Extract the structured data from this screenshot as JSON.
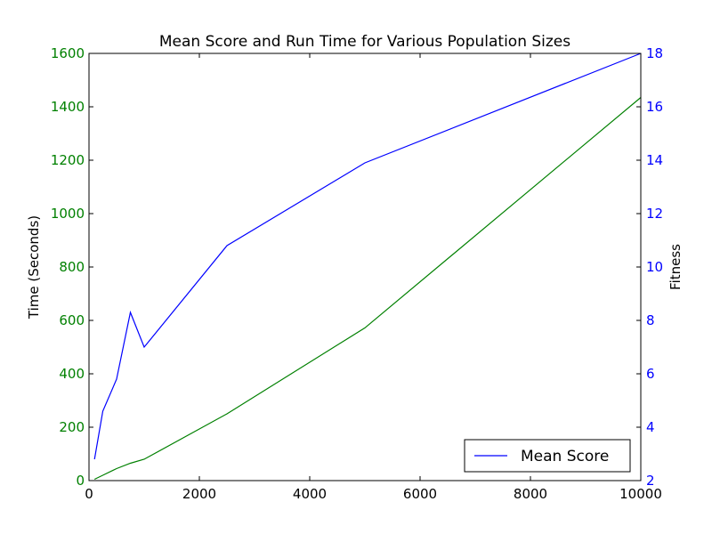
{
  "chart_data": {
    "type": "line",
    "title": "Mean Score and Run Time for Various Population Sizes",
    "xlabel": "",
    "ylabel": "Time (Seconds)",
    "y2label": "Fitness",
    "xlim": [
      0,
      10000
    ],
    "ylim": [
      0,
      1600
    ],
    "y2lim": [
      2,
      18
    ],
    "x_ticks": [
      "0",
      "2000",
      "4000",
      "6000",
      "8000",
      "10000"
    ],
    "y_ticks": [
      "0",
      "200",
      "400",
      "600",
      "800",
      "1000",
      "1200",
      "1400",
      "1600"
    ],
    "y2_ticks": [
      "2",
      "4",
      "6",
      "8",
      "10",
      "12",
      "14",
      "16",
      "18"
    ],
    "grid": false,
    "legend_position": "lower-right",
    "series": [
      {
        "name": "Mean Score",
        "axis": "right",
        "color": "#0000ff",
        "x": [
          100,
          250,
          500,
          750,
          1000,
          2500,
          5000,
          10000
        ],
        "values": [
          2.8,
          4.6,
          5.8,
          8.3,
          7.0,
          10.8,
          13.9,
          18.0
        ]
      },
      {
        "axis": "left",
        "color": "#008000",
        "x": [
          100,
          250,
          500,
          750,
          1000,
          2500,
          5000,
          10000
        ],
        "values": [
          5,
          20,
          45,
          65,
          80,
          250,
          572,
          1435
        ]
      }
    ]
  },
  "colors": {
    "left_axis": "#008000",
    "right_axis": "#0000ff",
    "bottom_axis": "#000000"
  }
}
